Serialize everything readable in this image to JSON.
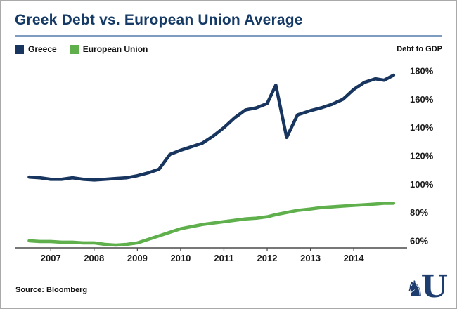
{
  "header": {
    "title": "Greek Debt vs. European Union Average"
  },
  "legend": {
    "items": [
      {
        "label": "Greece",
        "color": "#17355e"
      },
      {
        "label": "European Union",
        "color": "#5fb04c"
      }
    ]
  },
  "axis": {
    "y_axis_title": "Debt to GDP"
  },
  "footer": {
    "source": "Source: Bloomberg",
    "logo": {
      "glyph": "♞",
      "letter": "U"
    }
  },
  "colors": {
    "title": "#153a66",
    "rule": "#7d9cbf",
    "axis": "#4a4a4a",
    "tick_text": "#1a1a1a",
    "border": "#a9a9a9"
  },
  "chart_data": {
    "type": "line",
    "title": "Greek Debt vs. European Union Average",
    "xlabel": "",
    "ylabel": "Debt to GDP",
    "x": [
      2006.5,
      2006.75,
      2007,
      2007.25,
      2007.5,
      2007.75,
      2008,
      2008.25,
      2008.5,
      2008.75,
      2009,
      2009.25,
      2009.5,
      2009.75,
      2010,
      2010.25,
      2010.5,
      2010.75,
      2011,
      2011.25,
      2011.5,
      2011.75,
      2012,
      2012.2,
      2012.45,
      2012.7,
      2013,
      2013.25,
      2013.5,
      2013.75,
      2014,
      2014.25,
      2014.5,
      2014.7,
      2014.92
    ],
    "series": [
      {
        "name": "Greece",
        "color": "#17355e",
        "values": [
          105,
          104.5,
          103.5,
          103.5,
          104.5,
          103.5,
          103,
          103.5,
          104,
          104.5,
          106,
          108,
          110.5,
          121,
          124,
          126.5,
          129,
          134,
          140,
          147,
          152.5,
          154,
          157,
          170,
          133,
          149,
          152,
          154,
          156.5,
          160,
          167,
          172,
          174.5,
          173.5,
          177
        ]
      },
      {
        "name": "European Union",
        "color": "#5fb04c",
        "values": [
          60,
          59.5,
          59.5,
          59,
          59,
          58.5,
          58.5,
          57.5,
          57,
          57.5,
          58.5,
          61,
          63.5,
          66,
          68.5,
          70,
          71.5,
          72.5,
          73.5,
          74.5,
          75.5,
          76,
          77,
          78.5,
          80,
          81.5,
          82.5,
          83.5,
          84,
          84.5,
          85,
          85.5,
          86,
          86.5,
          86.5
        ]
      }
    ],
    "x_ticks": [
      2007,
      2008,
      2009,
      2010,
      2011,
      2012,
      2013,
      2014
    ],
    "x_tick_labels": [
      "2007",
      "2008",
      "2009",
      "2010",
      "2011",
      "2012",
      "2013",
      "2014"
    ],
    "y_ticks": [
      60,
      80,
      100,
      120,
      140,
      160,
      180
    ],
    "y_tick_labels": [
      "60%",
      "80%",
      "100%",
      "120%",
      "140%",
      "160%",
      "180%"
    ],
    "xlim": [
      2006.2,
      2015.2
    ],
    "ylim": [
      55,
      185
    ],
    "grid": false,
    "legend_position": "top-left"
  }
}
